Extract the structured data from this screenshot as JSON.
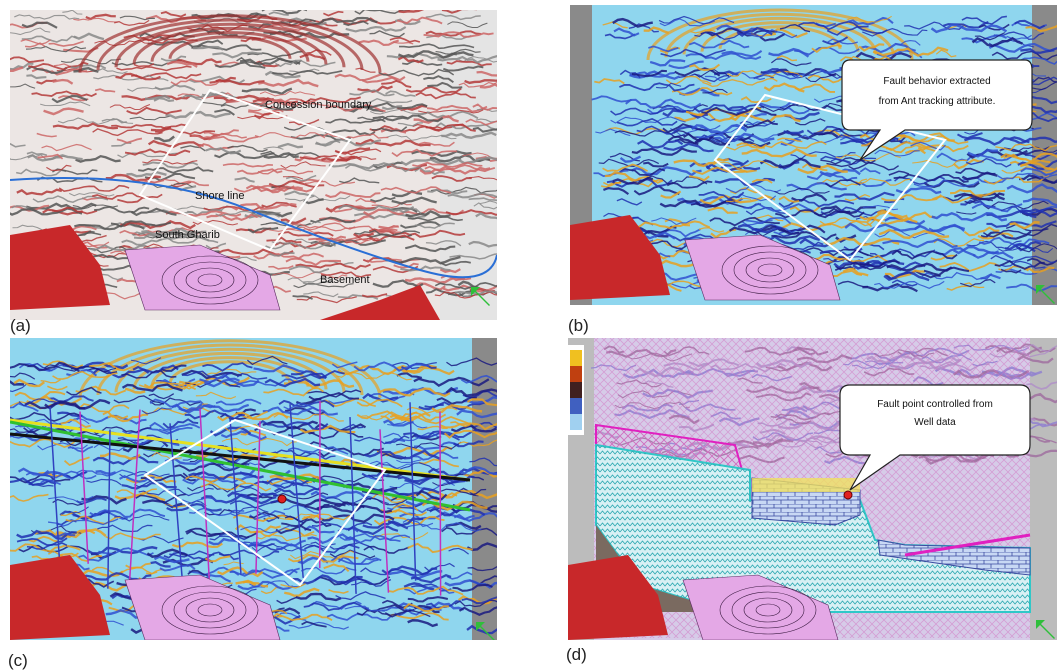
{
  "panels": [
    {
      "label": "(a)",
      "annotations": [
        "Concession boundary",
        "Shore line",
        "South Gharib",
        "Basement"
      ]
    },
    {
      "label": "(b)",
      "callout": [
        "Fault behavior extracted",
        "from Ant tracking attribute."
      ]
    },
    {
      "label": "(c)"
    },
    {
      "label": "(d)",
      "callout": [
        "Fault point controlled from",
        "Well data"
      ]
    }
  ]
}
